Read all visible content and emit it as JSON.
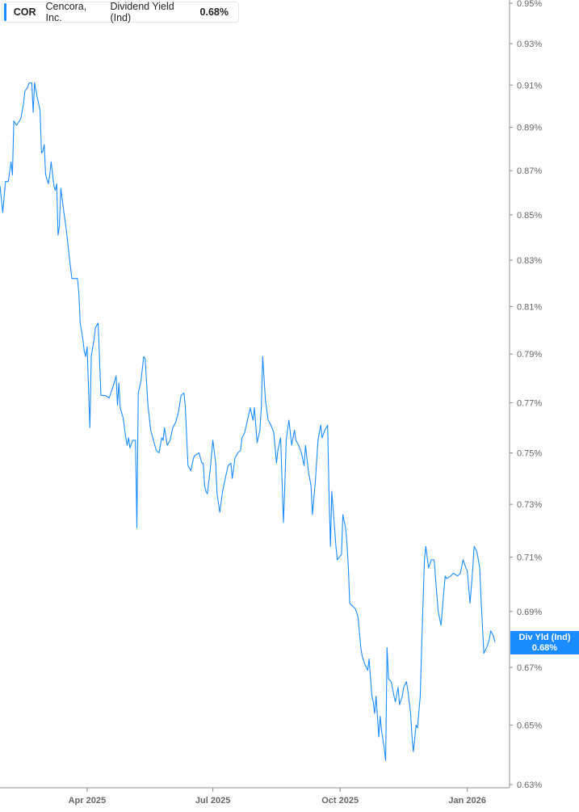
{
  "legend": {
    "ticker": "COR",
    "company": "Cencora, Inc.",
    "metric": "Dividend Yield (Ind)",
    "value": "0.68%",
    "color": "#1a8cff"
  },
  "last_value_label": {
    "title": "Div Yld (Ind)",
    "value": "0.68%"
  },
  "chart_data": {
    "type": "line",
    "title": "",
    "xlabel": "",
    "ylabel": "",
    "y_scale": "log",
    "ylim": [
      0.63,
      0.95
    ],
    "xlim": [
      "2025-01-28",
      "2026-01-31"
    ],
    "grid": false,
    "line_color": "#1a8cff",
    "y_ticks": [
      "0.95%",
      "0.93%",
      "0.91%",
      "0.89%",
      "0.87%",
      "0.85%",
      "0.83%",
      "0.81%",
      "0.79%",
      "0.77%",
      "0.75%",
      "0.73%",
      "0.71%",
      "0.69%",
      "0.67%",
      "0.65%",
      "0.63%"
    ],
    "y_tick_values": [
      0.95,
      0.93,
      0.91,
      0.89,
      0.87,
      0.85,
      0.83,
      0.81,
      0.79,
      0.77,
      0.75,
      0.73,
      0.71,
      0.69,
      0.67,
      0.65,
      0.63
    ],
    "x_ticks": [
      {
        "label": "Apr 2025",
        "date": "2025-04-01"
      },
      {
        "label": "Jul 2025",
        "date": "2025-07-01"
      },
      {
        "label": "Oct 2025",
        "date": "2025-10-01"
      },
      {
        "label": "Jan 2026",
        "date": "2026-01-01"
      }
    ],
    "series": [
      {
        "points": [
          [
            "2025-01-28",
            0.863
          ],
          [
            "2025-01-30",
            0.851
          ],
          [
            "2025-02-01",
            0.865
          ],
          [
            "2025-02-03",
            0.865
          ],
          [
            "2025-02-05",
            0.874
          ],
          [
            "2025-02-06",
            0.868
          ],
          [
            "2025-02-07",
            0.893
          ],
          [
            "2025-02-09",
            0.891
          ],
          [
            "2025-02-11",
            0.893
          ],
          [
            "2025-02-12",
            0.894
          ],
          [
            "2025-02-14",
            0.901
          ],
          [
            "2025-02-15",
            0.907
          ],
          [
            "2025-02-17",
            0.909
          ],
          [
            "2025-02-18",
            0.911
          ],
          [
            "2025-02-20",
            0.911
          ],
          [
            "2025-02-21",
            0.897
          ],
          [
            "2025-02-22",
            0.911
          ],
          [
            "2025-02-24",
            0.904
          ],
          [
            "2025-02-26",
            0.898
          ],
          [
            "2025-02-27",
            0.878
          ],
          [
            "2025-02-28",
            0.879
          ],
          [
            "2025-03-01",
            0.882
          ],
          [
            "2025-03-02",
            0.868
          ],
          [
            "2025-03-04",
            0.864
          ],
          [
            "2025-03-05",
            0.868
          ],
          [
            "2025-03-06",
            0.874
          ],
          [
            "2025-03-08",
            0.863
          ],
          [
            "2025-03-09",
            0.861
          ],
          [
            "2025-03-10",
            0.864
          ],
          [
            "2025-03-11",
            0.841
          ],
          [
            "2025-03-12",
            0.845
          ],
          [
            "2025-03-13",
            0.862
          ],
          [
            "2025-03-15",
            0.852
          ],
          [
            "2025-03-17",
            0.843
          ],
          [
            "2025-03-19",
            0.832
          ],
          [
            "2025-03-21",
            0.822
          ],
          [
            "2025-03-23",
            0.822
          ],
          [
            "2025-03-25",
            0.822
          ],
          [
            "2025-03-26",
            0.816
          ],
          [
            "2025-03-27",
            0.803
          ],
          [
            "2025-03-29",
            0.796
          ],
          [
            "2025-03-30",
            0.791
          ],
          [
            "2025-03-31",
            0.789
          ],
          [
            "2025-04-01",
            0.793
          ],
          [
            "2025-04-03",
            0.76
          ],
          [
            "2025-04-04",
            0.789
          ],
          [
            "2025-04-06",
            0.796
          ],
          [
            "2025-04-07",
            0.801
          ],
          [
            "2025-04-09",
            0.803
          ],
          [
            "2025-04-11",
            0.773
          ],
          [
            "2025-04-14",
            0.773
          ],
          [
            "2025-04-17",
            0.772
          ],
          [
            "2025-04-20",
            0.777
          ],
          [
            "2025-04-22",
            0.781
          ],
          [
            "2025-04-23",
            0.769
          ],
          [
            "2025-04-24",
            0.778
          ],
          [
            "2025-04-25",
            0.768
          ],
          [
            "2025-04-27",
            0.764
          ],
          [
            "2025-04-29",
            0.756
          ],
          [
            "2025-04-30",
            0.753
          ],
          [
            "2025-05-01",
            0.756
          ],
          [
            "2025-05-02",
            0.752
          ],
          [
            "2025-05-04",
            0.755
          ],
          [
            "2025-05-06",
            0.755
          ],
          [
            "2025-05-07",
            0.721
          ],
          [
            "2025-05-08",
            0.774
          ],
          [
            "2025-05-10",
            0.779
          ],
          [
            "2025-05-12",
            0.789
          ],
          [
            "2025-05-13",
            0.788
          ],
          [
            "2025-05-15",
            0.769
          ],
          [
            "2025-05-17",
            0.759
          ],
          [
            "2025-05-19",
            0.755
          ],
          [
            "2025-05-21",
            0.751
          ],
          [
            "2025-05-23",
            0.75
          ],
          [
            "2025-05-25",
            0.756
          ],
          [
            "2025-05-26",
            0.755
          ],
          [
            "2025-05-27",
            0.76
          ],
          [
            "2025-05-29",
            0.753
          ],
          [
            "2025-05-31",
            0.755
          ],
          [
            "2025-06-02",
            0.76
          ],
          [
            "2025-06-04",
            0.762
          ],
          [
            "2025-06-06",
            0.766
          ],
          [
            "2025-06-08",
            0.773
          ],
          [
            "2025-06-10",
            0.774
          ],
          [
            "2025-06-11",
            0.769
          ],
          [
            "2025-06-13",
            0.745
          ],
          [
            "2025-06-15",
            0.743
          ],
          [
            "2025-06-17",
            0.748
          ],
          [
            "2025-06-18",
            0.749
          ],
          [
            "2025-06-21",
            0.75
          ],
          [
            "2025-06-23",
            0.746
          ],
          [
            "2025-06-24",
            0.746
          ],
          [
            "2025-06-25",
            0.737
          ],
          [
            "2025-06-26",
            0.735
          ],
          [
            "2025-06-27",
            0.734
          ],
          [
            "2025-06-29",
            0.743
          ],
          [
            "2025-07-01",
            0.755
          ],
          [
            "2025-07-03",
            0.746
          ],
          [
            "2025-07-04",
            0.734
          ],
          [
            "2025-07-06",
            0.727
          ],
          [
            "2025-07-08",
            0.735
          ],
          [
            "2025-07-10",
            0.74
          ],
          [
            "2025-07-12",
            0.745
          ],
          [
            "2025-07-14",
            0.746
          ],
          [
            "2025-07-15",
            0.74
          ],
          [
            "2025-07-17",
            0.748
          ],
          [
            "2025-07-19",
            0.75
          ],
          [
            "2025-07-21",
            0.751
          ],
          [
            "2025-07-22",
            0.756
          ],
          [
            "2025-07-24",
            0.758
          ],
          [
            "2025-07-26",
            0.763
          ],
          [
            "2025-07-28",
            0.768
          ],
          [
            "2025-07-30",
            0.763
          ],
          [
            "2025-07-31",
            0.768
          ],
          [
            "2025-08-02",
            0.754
          ],
          [
            "2025-08-04",
            0.759
          ],
          [
            "2025-08-05",
            0.768
          ],
          [
            "2025-08-06",
            0.789
          ],
          [
            "2025-08-08",
            0.771
          ],
          [
            "2025-08-10",
            0.763
          ],
          [
            "2025-08-12",
            0.761
          ],
          [
            "2025-08-14",
            0.758
          ],
          [
            "2025-08-16",
            0.746
          ],
          [
            "2025-08-17",
            0.751
          ],
          [
            "2025-08-19",
            0.756
          ],
          [
            "2025-08-21",
            0.723
          ],
          [
            "2025-08-22",
            0.737
          ],
          [
            "2025-08-23",
            0.755
          ],
          [
            "2025-08-25",
            0.763
          ],
          [
            "2025-08-27",
            0.753
          ],
          [
            "2025-08-29",
            0.759
          ],
          [
            "2025-08-30",
            0.755
          ],
          [
            "2025-09-01",
            0.753
          ],
          [
            "2025-09-03",
            0.75
          ],
          [
            "2025-09-05",
            0.745
          ],
          [
            "2025-09-06",
            0.753
          ],
          [
            "2025-09-08",
            0.743
          ],
          [
            "2025-09-10",
            0.737
          ],
          [
            "2025-09-11",
            0.726
          ],
          [
            "2025-09-13",
            0.738
          ],
          [
            "2025-09-15",
            0.755
          ],
          [
            "2025-09-17",
            0.761
          ],
          [
            "2025-09-18",
            0.756
          ],
          [
            "2025-09-20",
            0.759
          ],
          [
            "2025-09-22",
            0.761
          ],
          [
            "2025-09-23",
            0.735
          ],
          [
            "2025-09-24",
            0.714
          ],
          [
            "2025-09-25",
            0.735
          ],
          [
            "2025-09-27",
            0.721
          ],
          [
            "2025-09-28",
            0.714
          ],
          [
            "2025-09-29",
            0.709
          ],
          [
            "2025-10-02",
            0.711
          ],
          [
            "2025-10-03",
            0.726
          ],
          [
            "2025-10-05",
            0.721
          ],
          [
            "2025-10-06",
            0.715
          ],
          [
            "2025-10-07",
            0.706
          ],
          [
            "2025-10-08",
            0.693
          ],
          [
            "2025-10-10",
            0.692
          ],
          [
            "2025-10-12",
            0.691
          ],
          [
            "2025-10-14",
            0.688
          ],
          [
            "2025-10-16",
            0.677
          ],
          [
            "2025-10-17",
            0.674
          ],
          [
            "2025-10-19",
            0.671
          ],
          [
            "2025-10-21",
            0.669
          ],
          [
            "2025-10-22",
            0.673
          ],
          [
            "2025-10-24",
            0.66
          ],
          [
            "2025-10-25",
            0.658
          ],
          [
            "2025-10-26",
            0.654
          ],
          [
            "2025-10-27",
            0.66
          ],
          [
            "2025-10-29",
            0.646
          ],
          [
            "2025-10-30",
            0.653
          ],
          [
            "2025-10-31",
            0.648
          ],
          [
            "2025-11-02",
            0.642
          ],
          [
            "2025-11-03",
            0.638
          ],
          [
            "2025-11-04",
            0.677
          ],
          [
            "2025-11-05",
            0.666
          ],
          [
            "2025-11-07",
            0.665
          ],
          [
            "2025-11-09",
            0.66
          ],
          [
            "2025-11-10",
            0.658
          ],
          [
            "2025-11-12",
            0.663
          ],
          [
            "2025-11-13",
            0.657
          ],
          [
            "2025-11-15",
            0.66
          ],
          [
            "2025-11-16",
            0.663
          ],
          [
            "2025-11-18",
            0.665
          ],
          [
            "2025-11-19",
            0.662
          ],
          [
            "2025-11-21",
            0.654
          ],
          [
            "2025-11-22",
            0.646
          ],
          [
            "2025-11-23",
            0.641
          ],
          [
            "2025-11-25",
            0.65
          ],
          [
            "2025-11-26",
            0.649
          ],
          [
            "2025-11-28",
            0.66
          ],
          [
            "2025-11-29",
            0.677
          ],
          [
            "2025-12-01",
            0.709
          ],
          [
            "2025-12-02",
            0.714
          ],
          [
            "2025-12-04",
            0.706
          ],
          [
            "2025-12-06",
            0.709
          ],
          [
            "2025-12-08",
            0.709
          ],
          [
            "2025-12-10",
            0.696
          ],
          [
            "2025-12-11",
            0.69
          ],
          [
            "2025-12-13",
            0.685
          ],
          [
            "2025-12-15",
            0.697
          ],
          [
            "2025-12-16",
            0.703
          ],
          [
            "2025-12-17",
            0.702
          ],
          [
            "2025-12-20",
            0.703
          ],
          [
            "2025-12-22",
            0.704
          ],
          [
            "2025-12-25",
            0.703
          ],
          [
            "2025-12-27",
            0.704
          ],
          [
            "2025-12-29",
            0.709
          ],
          [
            "2025-12-31",
            0.706
          ],
          [
            "2026-01-01",
            0.705
          ],
          [
            "2026-01-03",
            0.693
          ],
          [
            "2026-01-05",
            0.706
          ],
          [
            "2026-01-06",
            0.714
          ],
          [
            "2026-01-08",
            0.712
          ],
          [
            "2026-01-10",
            0.706
          ],
          [
            "2026-01-11",
            0.694
          ],
          [
            "2026-01-13",
            0.675
          ],
          [
            "2026-01-15",
            0.677
          ],
          [
            "2026-01-17",
            0.68
          ],
          [
            "2026-01-18",
            0.683
          ],
          [
            "2026-01-20",
            0.681
          ],
          [
            "2026-01-21",
            0.679
          ]
        ]
      }
    ]
  }
}
